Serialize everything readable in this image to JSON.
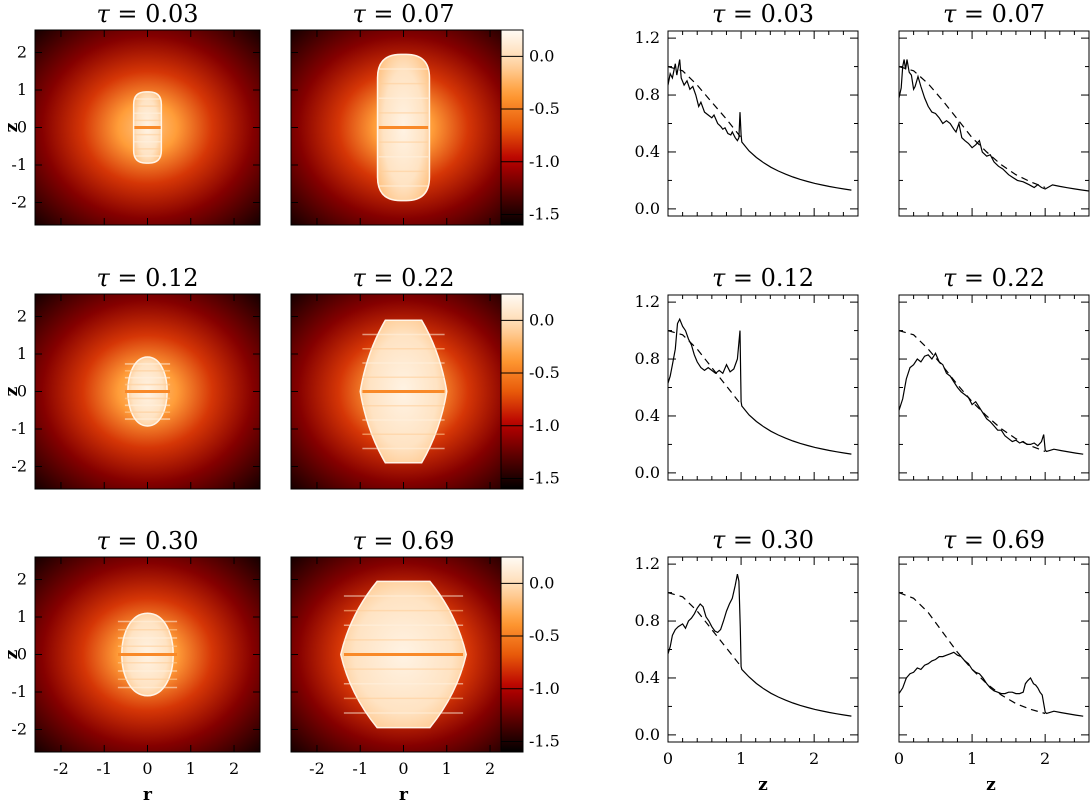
{
  "chart_data": {
    "type": "figure",
    "colormap": {
      "stops": [
        "#000000",
        "#5a0000",
        "#b80000",
        "#e85a0a",
        "#ff9a33",
        "#ffd6a8",
        "#fffbf5"
      ],
      "range": [
        -1.6,
        0.25
      ],
      "ticks": [
        "0.0",
        "-0.5",
        "-1.0",
        "-1.5"
      ]
    },
    "map_panels": [
      {
        "tau": "0.03",
        "shape": "column",
        "half_width": 0.32,
        "half_height": 0.95
      },
      {
        "tau": "0.07",
        "shape": "column",
        "half_width": 0.6,
        "half_height": 1.95
      },
      {
        "tau": "0.12",
        "shape": "ellipse",
        "half_width": 0.55,
        "half_height": 0.92
      },
      {
        "tau": "0.22",
        "shape": "diamond",
        "half_width": 1.0,
        "half_height": 1.9
      },
      {
        "tau": "0.30",
        "shape": "ellipse",
        "half_width": 0.72,
        "half_height": 1.1
      },
      {
        "tau": "0.69",
        "shape": "diamond",
        "half_width": 1.45,
        "half_height": 1.95
      }
    ],
    "map_axes": {
      "xlabel": "r",
      "ylabel": "z",
      "xlim": [
        -2.6,
        2.6
      ],
      "ylim": [
        -2.6,
        2.6
      ],
      "xticks": [
        "-2",
        "-1",
        "0",
        "1",
        "2"
      ],
      "yticks": [
        "2",
        "1",
        "0",
        "-1",
        "-2"
      ]
    },
    "profile_axes": {
      "xlabel": "z",
      "xlim": [
        0,
        2.6
      ],
      "ylim": [
        -0.05,
        1.25
      ],
      "xticks": [
        "0",
        "1",
        "2"
      ],
      "yticks": [
        "1.2",
        "0.8",
        "0.4",
        "0.0"
      ]
    },
    "profile_panels": [
      {
        "tau": "0.03",
        "dashed": [
          [
            0,
            1.0
          ],
          [
            0.2,
            0.97
          ],
          [
            0.4,
            0.87
          ],
          [
            0.6,
            0.75
          ],
          [
            0.8,
            0.63
          ],
          [
            1.0,
            0.5
          ]
        ],
        "solid": [
          [
            0,
            0.87
          ],
          [
            0.03,
            0.95
          ],
          [
            0.06,
            0.92
          ],
          [
            0.1,
            1.02
          ],
          [
            0.12,
            0.94
          ],
          [
            0.16,
            1.05
          ],
          [
            0.18,
            0.92
          ],
          [
            0.22,
            0.87
          ],
          [
            0.26,
            0.9
          ],
          [
            0.3,
            0.84
          ],
          [
            0.34,
            0.86
          ],
          [
            0.38,
            0.8
          ],
          [
            0.42,
            0.72
          ],
          [
            0.45,
            0.75
          ],
          [
            0.5,
            0.68
          ],
          [
            0.55,
            0.66
          ],
          [
            0.6,
            0.64
          ],
          [
            0.63,
            0.66
          ],
          [
            0.68,
            0.6
          ],
          [
            0.72,
            0.58
          ],
          [
            0.75,
            0.56
          ],
          [
            0.78,
            0.57
          ],
          [
            0.82,
            0.53
          ],
          [
            0.86,
            0.52
          ],
          [
            0.88,
            0.54
          ],
          [
            0.92,
            0.5
          ],
          [
            0.95,
            0.48
          ],
          [
            0.97,
            0.5
          ],
          [
            0.985,
            0.68
          ],
          [
            1.0,
            0.52
          ],
          [
            1.01,
            0.47
          ]
        ]
      },
      {
        "tau": "0.07",
        "dashed": [
          [
            0,
            1.0
          ],
          [
            0.2,
            0.97
          ],
          [
            0.4,
            0.88
          ],
          [
            0.6,
            0.76
          ],
          [
            0.8,
            0.63
          ],
          [
            1.0,
            0.5
          ],
          [
            1.2,
            0.4
          ],
          [
            1.4,
            0.31
          ],
          [
            1.6,
            0.24
          ],
          [
            1.8,
            0.19
          ],
          [
            2.0,
            0.15
          ]
        ],
        "solid": [
          [
            0,
            0.78
          ],
          [
            0.03,
            0.85
          ],
          [
            0.05,
            1.0
          ],
          [
            0.07,
            1.05
          ],
          [
            0.09,
            0.98
          ],
          [
            0.11,
            1.05
          ],
          [
            0.14,
            0.96
          ],
          [
            0.17,
            0.94
          ],
          [
            0.2,
            0.84
          ],
          [
            0.22,
            0.86
          ],
          [
            0.26,
            0.93
          ],
          [
            0.3,
            0.86
          ],
          [
            0.35,
            0.78
          ],
          [
            0.4,
            0.72
          ],
          [
            0.45,
            0.68
          ],
          [
            0.5,
            0.67
          ],
          [
            0.55,
            0.64
          ],
          [
            0.6,
            0.6
          ],
          [
            0.65,
            0.62
          ],
          [
            0.7,
            0.6
          ],
          [
            0.75,
            0.56
          ],
          [
            0.78,
            0.54
          ],
          [
            0.82,
            0.6
          ],
          [
            0.86,
            0.5
          ],
          [
            0.9,
            0.48
          ],
          [
            0.95,
            0.46
          ],
          [
            1.0,
            0.43
          ],
          [
            1.05,
            0.45
          ],
          [
            1.1,
            0.48
          ],
          [
            1.14,
            0.4
          ],
          [
            1.2,
            0.37
          ],
          [
            1.25,
            0.38
          ],
          [
            1.3,
            0.33
          ],
          [
            1.36,
            0.3
          ],
          [
            1.42,
            0.28
          ],
          [
            1.5,
            0.24
          ],
          [
            1.56,
            0.22
          ],
          [
            1.62,
            0.2
          ],
          [
            1.7,
            0.19
          ],
          [
            1.78,
            0.17
          ],
          [
            1.85,
            0.15
          ],
          [
            1.9,
            0.17
          ],
          [
            1.95,
            0.15
          ],
          [
            2.0,
            0.14
          ]
        ]
      },
      {
        "tau": "0.12",
        "dashed": [
          [
            0,
            1.0
          ],
          [
            0.2,
            0.97
          ],
          [
            0.4,
            0.87
          ],
          [
            0.6,
            0.74
          ],
          [
            0.8,
            0.61
          ],
          [
            1.0,
            0.48
          ]
        ],
        "solid": [
          [
            0,
            0.63
          ],
          [
            0.03,
            0.68
          ],
          [
            0.06,
            0.76
          ],
          [
            0.1,
            0.87
          ],
          [
            0.13,
            1.05
          ],
          [
            0.16,
            1.08
          ],
          [
            0.2,
            1.03
          ],
          [
            0.24,
            1.0
          ],
          [
            0.28,
            0.94
          ],
          [
            0.32,
            0.9
          ],
          [
            0.36,
            0.83
          ],
          [
            0.4,
            0.78
          ],
          [
            0.45,
            0.74
          ],
          [
            0.5,
            0.72
          ],
          [
            0.55,
            0.74
          ],
          [
            0.6,
            0.72
          ],
          [
            0.65,
            0.7
          ],
          [
            0.7,
            0.72
          ],
          [
            0.75,
            0.7
          ],
          [
            0.8,
            0.76
          ],
          [
            0.85,
            0.71
          ],
          [
            0.9,
            0.73
          ],
          [
            0.95,
            0.8
          ],
          [
            0.985,
            1.0
          ],
          [
            1.0,
            0.5
          ],
          [
            1.01,
            0.47
          ]
        ]
      },
      {
        "tau": "0.22",
        "dashed": [
          [
            0,
            1.0
          ],
          [
            0.2,
            0.97
          ],
          [
            0.4,
            0.87
          ],
          [
            0.6,
            0.75
          ],
          [
            0.8,
            0.62
          ],
          [
            1.0,
            0.5
          ],
          [
            1.2,
            0.4
          ],
          [
            1.4,
            0.31
          ],
          [
            1.6,
            0.24
          ],
          [
            1.8,
            0.19
          ],
          [
            2.0,
            0.15
          ]
        ],
        "solid": [
          [
            0,
            0.44
          ],
          [
            0.05,
            0.52
          ],
          [
            0.1,
            0.66
          ],
          [
            0.15,
            0.74
          ],
          [
            0.2,
            0.76
          ],
          [
            0.25,
            0.8
          ],
          [
            0.3,
            0.78
          ],
          [
            0.35,
            0.82
          ],
          [
            0.4,
            0.83
          ],
          [
            0.45,
            0.8
          ],
          [
            0.5,
            0.84
          ],
          [
            0.55,
            0.78
          ],
          [
            0.6,
            0.76
          ],
          [
            0.65,
            0.7
          ],
          [
            0.7,
            0.68
          ],
          [
            0.75,
            0.64
          ],
          [
            0.8,
            0.6
          ],
          [
            0.85,
            0.57
          ],
          [
            0.9,
            0.55
          ],
          [
            0.95,
            0.53
          ],
          [
            1.0,
            0.48
          ],
          [
            1.05,
            0.5
          ],
          [
            1.1,
            0.46
          ],
          [
            1.15,
            0.42
          ],
          [
            1.2,
            0.38
          ],
          [
            1.25,
            0.36
          ],
          [
            1.3,
            0.33
          ],
          [
            1.35,
            0.3
          ],
          [
            1.4,
            0.3
          ],
          [
            1.45,
            0.26
          ],
          [
            1.5,
            0.24
          ],
          [
            1.55,
            0.22
          ],
          [
            1.6,
            0.23
          ],
          [
            1.65,
            0.21
          ],
          [
            1.7,
            0.22
          ],
          [
            1.75,
            0.2
          ],
          [
            1.8,
            0.2
          ],
          [
            1.85,
            0.21
          ],
          [
            1.9,
            0.19
          ],
          [
            1.95,
            0.22
          ],
          [
            1.98,
            0.27
          ],
          [
            2.0,
            0.16
          ],
          [
            2.02,
            0.15
          ]
        ]
      },
      {
        "tau": "0.30",
        "dashed": [
          [
            0,
            1.0
          ],
          [
            0.2,
            0.97
          ],
          [
            0.4,
            0.87
          ],
          [
            0.6,
            0.74
          ],
          [
            0.8,
            0.61
          ],
          [
            1.0,
            0.48
          ]
        ],
        "solid": [
          [
            0,
            0.57
          ],
          [
            0.03,
            0.62
          ],
          [
            0.06,
            0.7
          ],
          [
            0.1,
            0.74
          ],
          [
            0.14,
            0.76
          ],
          [
            0.2,
            0.78
          ],
          [
            0.24,
            0.75
          ],
          [
            0.28,
            0.8
          ],
          [
            0.32,
            0.82
          ],
          [
            0.36,
            0.85
          ],
          [
            0.4,
            0.89
          ],
          [
            0.44,
            0.92
          ],
          [
            0.48,
            0.9
          ],
          [
            0.52,
            0.83
          ],
          [
            0.56,
            0.8
          ],
          [
            0.6,
            0.76
          ],
          [
            0.64,
            0.73
          ],
          [
            0.68,
            0.72
          ],
          [
            0.72,
            0.74
          ],
          [
            0.76,
            0.8
          ],
          [
            0.8,
            0.87
          ],
          [
            0.84,
            0.92
          ],
          [
            0.88,
            0.96
          ],
          [
            0.92,
            1.05
          ],
          [
            0.95,
            1.13
          ],
          [
            0.97,
            1.08
          ],
          [
            0.99,
            0.75
          ],
          [
            1.0,
            0.48
          ],
          [
            1.01,
            0.46
          ]
        ]
      },
      {
        "tau": "0.69",
        "dashed": [
          [
            0,
            1.0
          ],
          [
            0.2,
            0.96
          ],
          [
            0.4,
            0.86
          ],
          [
            0.6,
            0.72
          ],
          [
            0.8,
            0.58
          ],
          [
            1.0,
            0.46
          ],
          [
            1.2,
            0.36
          ],
          [
            1.4,
            0.28
          ],
          [
            1.6,
            0.22
          ],
          [
            1.8,
            0.18
          ],
          [
            2.0,
            0.15
          ]
        ],
        "solid": [
          [
            0,
            0.29
          ],
          [
            0.05,
            0.33
          ],
          [
            0.1,
            0.4
          ],
          [
            0.15,
            0.43
          ],
          [
            0.2,
            0.44
          ],
          [
            0.25,
            0.47
          ],
          [
            0.3,
            0.46
          ],
          [
            0.35,
            0.49
          ],
          [
            0.4,
            0.5
          ],
          [
            0.45,
            0.52
          ],
          [
            0.5,
            0.53
          ],
          [
            0.55,
            0.55
          ],
          [
            0.6,
            0.55
          ],
          [
            0.65,
            0.56
          ],
          [
            0.7,
            0.57
          ],
          [
            0.75,
            0.58
          ],
          [
            0.8,
            0.56
          ],
          [
            0.85,
            0.55
          ],
          [
            0.9,
            0.52
          ],
          [
            0.95,
            0.5
          ],
          [
            1.0,
            0.46
          ],
          [
            1.05,
            0.44
          ],
          [
            1.1,
            0.43
          ],
          [
            1.15,
            0.4
          ],
          [
            1.2,
            0.36
          ],
          [
            1.25,
            0.33
          ],
          [
            1.3,
            0.31
          ],
          [
            1.35,
            0.3
          ],
          [
            1.4,
            0.29
          ],
          [
            1.45,
            0.29
          ],
          [
            1.5,
            0.3
          ],
          [
            1.55,
            0.3
          ],
          [
            1.6,
            0.29
          ],
          [
            1.65,
            0.29
          ],
          [
            1.7,
            0.3
          ],
          [
            1.73,
            0.36
          ],
          [
            1.76,
            0.38
          ],
          [
            1.8,
            0.4
          ],
          [
            1.84,
            0.36
          ],
          [
            1.87,
            0.35
          ],
          [
            1.9,
            0.33
          ],
          [
            1.93,
            0.3
          ],
          [
            1.96,
            0.28
          ],
          [
            2.0,
            0.16
          ],
          [
            2.02,
            0.15
          ]
        ]
      }
    ]
  }
}
